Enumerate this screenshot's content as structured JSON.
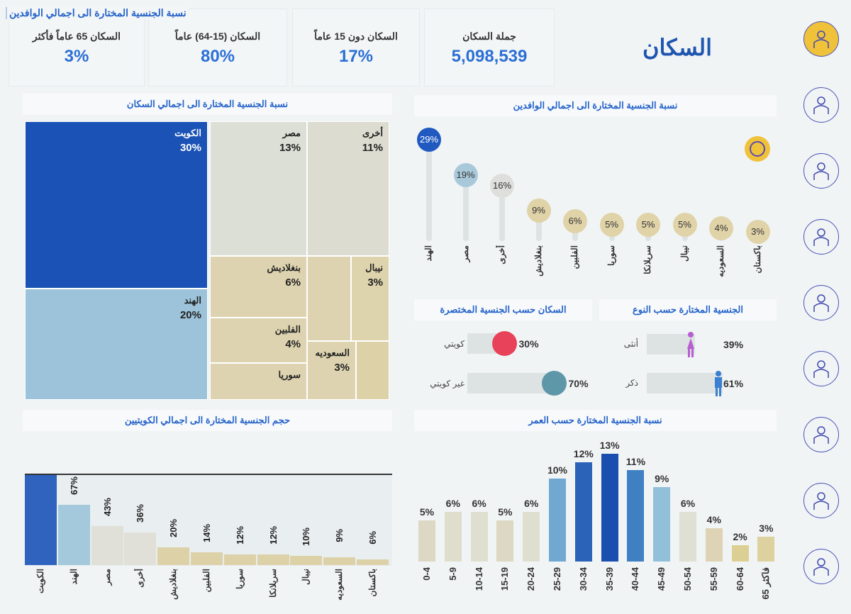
{
  "header": {
    "top_title": "نسبة الجنسية المختارة الى اجمالي الوافدين",
    "page_title": "السكان"
  },
  "kpis": [
    {
      "label": "جملة السكان",
      "value": "5,098,539"
    },
    {
      "label": "السكان دون 15 عاماً",
      "value": "17%"
    },
    {
      "label": "السكان (15-64) عاماً",
      "value": "80%"
    },
    {
      "label": "السكان 65 عاماً فأكثر",
      "value": "3%"
    }
  ],
  "panels": {
    "treemap_title": "نسبة الجنسية المختارة الى اجمالي السكان",
    "lollipop_title": "نسبة الجنسية المختارة الى اجمالي الوافدين",
    "gender_title": "الجنسية المختارة حسب النوع",
    "short_nat_title": "السكان حسب الجنسية المختصرة",
    "kuwaiti_title": "حجم الجنسية المختارة الى اجمالي الكويتيين",
    "age_title": "نسبة الجنسية المختارة حسب العمر"
  },
  "gender": [
    {
      "label": "أنثى",
      "value": "39%",
      "fraction": 0.39,
      "color": "#b65fd0"
    },
    {
      "label": "ذكر",
      "value": "61%",
      "fraction": 0.61,
      "color": "#3a7fd0"
    }
  ],
  "short_nationality": [
    {
      "label": "كويتي",
      "value": "30%",
      "fraction": 0.3,
      "color": "#e8425a"
    },
    {
      "label": "غير كويتي",
      "value": "70%",
      "fraction": 0.7,
      "color": "#5e97a8"
    }
  ],
  "colors": {
    "dark_blue": "#1a52b5",
    "light_blue": "#9cc3d9",
    "gray": "#dcdfd6",
    "tan": "#dfd3ae",
    "accent": "#2563c9"
  },
  "sidebar": {
    "icons": [
      "population-icon",
      "community-icon",
      "statistics-icon",
      "growth-icon",
      "workforce-icon",
      "workers-icon",
      "domestic-workers-icon",
      "labor-icon",
      "housing-icon"
    ]
  },
  "chart_data": [
    {
      "type": "treemap",
      "title": "نسبة الجنسية المختارة الى اجمالي السكان",
      "items": [
        {
          "label": "الكويت",
          "value": "30%"
        },
        {
          "label": "الهند",
          "value": "20%"
        },
        {
          "label": "مصر",
          "value": "13%"
        },
        {
          "label": "أخرى",
          "value": "11%"
        },
        {
          "label": "بنغلاديش",
          "value": "6%"
        },
        {
          "label": "الفلبين",
          "value": "4%"
        },
        {
          "label": "سوريا",
          "value": ""
        },
        {
          "label": "نيبال",
          "value": "3%"
        },
        {
          "label": "السعوديه",
          "value": "3%"
        }
      ]
    },
    {
      "type": "lollipop",
      "title": "نسبة الجنسية المختارة الى اجمالي الوافدين",
      "categories": [
        "الهند",
        "مصر",
        "أخرى",
        "بنغلاديش",
        "الفلبين",
        "سوريا",
        "سريلانكا",
        "نيبال",
        "السعوديه",
        "باكستان"
      ],
      "values": [
        29,
        19,
        16,
        9,
        6,
        5,
        5,
        5,
        4,
        3
      ]
    },
    {
      "type": "bar",
      "title": "حجم الجنسية المختارة الى اجمالي الكويتيين",
      "categories": [
        "الكويت",
        "الهند",
        "مصر",
        "أخرى",
        "بنغلاديش",
        "الفلبين",
        "سوريا",
        "سريلانكا",
        "نيبال",
        "السعوديه",
        "باكستان"
      ],
      "values": [
        100,
        67,
        43,
        36,
        20,
        14,
        12,
        12,
        10,
        9,
        6
      ],
      "labels": [
        null,
        "67%",
        "43%",
        "36%",
        "20%",
        "14%",
        "12%",
        "12%",
        "10%",
        "9%",
        "6%"
      ]
    },
    {
      "type": "bar",
      "title": "نسبة الجنسية المختارة حسب العمر",
      "categories": [
        "0-4",
        "5-9",
        "10-14",
        "15-19",
        "20-24",
        "25-29",
        "30-34",
        "35-39",
        "40-44",
        "45-49",
        "50-54",
        "55-59",
        "60-64",
        "65 فاكثر"
      ],
      "values": [
        5,
        6,
        6,
        5,
        6,
        10,
        12,
        13,
        11,
        9,
        6,
        4,
        2,
        3
      ],
      "colors": [
        "#ddd8c3",
        "#dfddcb",
        "#dfdfd0",
        "#ddd8c3",
        "#dfdfd0",
        "#70a8d2",
        "#2a63b8",
        "#1a4fb0",
        "#3f80c3",
        "#92c0d8",
        "#dfdfd4",
        "#ded4b5",
        "#dccf93",
        "#ddd1a0"
      ]
    }
  ]
}
